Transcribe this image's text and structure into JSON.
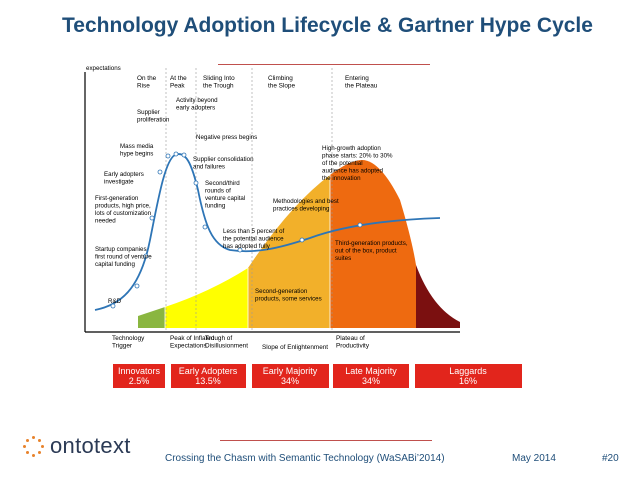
{
  "slide": {
    "title": "Technology Adoption Lifecycle & Gartner Hype Cycle",
    "footer": "Crossing the Chasm with Semantic Technology (WaSABi’2014)",
    "date": "May 2014",
    "slide_number": "#20"
  },
  "logo": {
    "text": "ontotext"
  },
  "axis": {
    "y_label": "expectations"
  },
  "top_phases": [
    "On the\nRise",
    "At the\nPeak",
    "Sliding Into\nthe Trough",
    "Climbing\nthe Slope",
    "Entering\nthe Plateau"
  ],
  "bottom_phases": [
    "Technology\nTrigger",
    "Peak of Inflated\nExpectations",
    "Trough of\nDisillusionment",
    "Slope of Enlightenment",
    "Plateau of\nProductivity"
  ],
  "annotations": [
    "R&D",
    "Startup companies\nfirst round of venture\ncapital funding",
    "First-generation\nproducts, high price,\nlots of customization\nneeded",
    "Early adopters\ninvestigate",
    "Mass media\nhype begins",
    "Supplier\nproliferation",
    "Activity beyond\nearly adopters",
    "Negative press begins",
    "Supplier consolidation\nand failures",
    "Second/third\nrounds of\nventure capital\nfunding",
    "Less than 5 percent of\nthe potential audience\nhas adopted fully",
    "Second-generation\nproducts, some services",
    "Methodologies and best\npractices developing",
    "Third-generation products,\nout of the box, product\nsuites",
    "High-growth adoption\nphase starts: 20% to 30%\nof the potential\naudience has adopted\nthe innovation"
  ],
  "categories": [
    {
      "name": "Innovators",
      "pct": "2.5%"
    },
    {
      "name": "Early Adopters",
      "pct": "13.5%"
    },
    {
      "name": "Early Majority",
      "pct": "34%"
    },
    {
      "name": "Late Majority",
      "pct": "34%"
    },
    {
      "name": "Laggards",
      "pct": "16%"
    }
  ],
  "colors": {
    "innovators": "#8ab640",
    "early_adopters": "#ffff00",
    "early_majority": "#f2b02a",
    "late_majority": "#ee6a10",
    "laggards": "#7b1010",
    "category_box": "#e2251c",
    "title": "#1f4e79",
    "curve": "#2e75b6"
  }
}
